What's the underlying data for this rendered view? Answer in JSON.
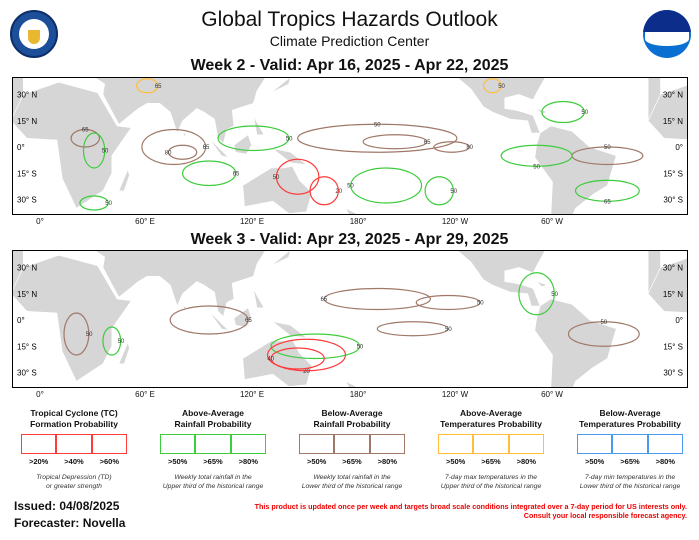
{
  "header": {
    "title": "Global Tropics Hazards Outlook",
    "subtitle": "Climate Prediction Center",
    "left_logo": "doc-seal",
    "right_logo": "noaa-logo"
  },
  "week2": {
    "title": "Week 2 - Valid: Apr 16, 2025 - Apr 22, 2025"
  },
  "week3": {
    "title": "Week 3 - Valid: Apr 23, 2025 - Apr 29, 2025"
  },
  "axes": {
    "lat_labels": [
      "30° N",
      "15° N",
      "0°",
      "15° S",
      "30° S"
    ],
    "lat_labels_right": [
      "30° N",
      "15° N",
      "0°",
      "15° S",
      "30° S"
    ],
    "lon_labels": [
      "0°",
      "60° E",
      "120° E",
      "180°",
      "120° W",
      "60° W"
    ]
  },
  "colors": {
    "tc": "#ff3b3b",
    "above_rain": "#3ccc3c",
    "below_rain": "#a07868",
    "above_temp": "#ffbe3c",
    "below_temp": "#4a9af0",
    "land": "#d6d6d6"
  },
  "legend": [
    {
      "title": [
        "Tropical Cyclone (TC)",
        "Formation Probability"
      ],
      "pcts": [
        ">20%",
        ">40%",
        ">60%"
      ],
      "desc": [
        "Tropical Depression (TD)",
        "or greater strength"
      ],
      "color": "#ff3b3b"
    },
    {
      "title": [
        "Above-Average",
        "Rainfall Probability"
      ],
      "pcts": [
        ">50%",
        ">65%",
        ">80%"
      ],
      "desc": [
        "Weekly total rainfall in the",
        "Upper third of the historical range"
      ],
      "color": "#3ccc3c"
    },
    {
      "title": [
        "Below-Average",
        "Rainfall Probability"
      ],
      "pcts": [
        ">50%",
        ">65%",
        ">80%"
      ],
      "desc": [
        "Weekly total rainfall in the",
        "Lower third of the historical range"
      ],
      "color": "#a07868"
    },
    {
      "title": [
        "Above-Average",
        "Temperatures Probability"
      ],
      "pcts": [
        ">50%",
        ">65%",
        ">80%"
      ],
      "desc": [
        "7-day max temperatures in the",
        "Upper third of the historical range"
      ],
      "color": "#ffbe3c"
    },
    {
      "title": [
        "Below-Average",
        "Temperatures Probability"
      ],
      "pcts": [
        ">50%",
        ">65%",
        ">80%"
      ],
      "desc": [
        "7-day min temperatures in the",
        "Lower third of the historical range"
      ],
      "color": "#4a9af0"
    }
  ],
  "footer": {
    "issued": "Issued: 04/08/2025",
    "forecaster": "Forecaster: Novella",
    "disclaimer": [
      "This product is updated once per week and targets broad scale conditions integrated over a 7-day period for US interests only.",
      "Consult your local responsible forecast agency."
    ]
  }
}
